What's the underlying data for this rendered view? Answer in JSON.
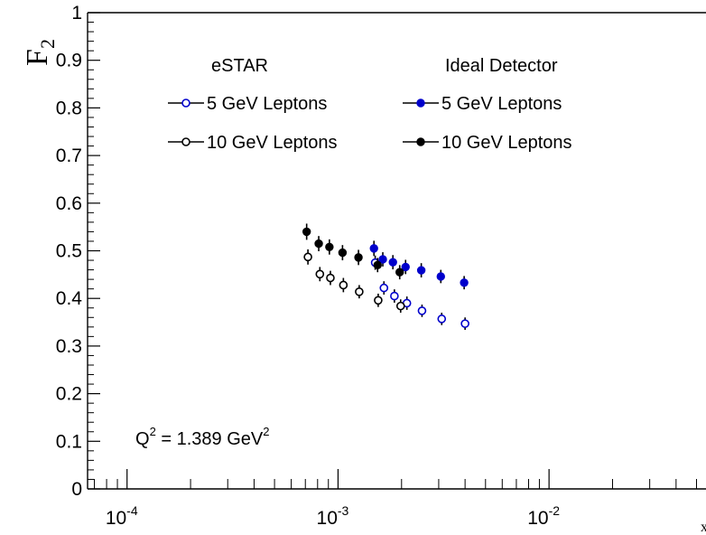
{
  "chart_data": {
    "type": "scatter",
    "title": "",
    "ylabel": {
      "base": "F",
      "sub": "2"
    },
    "xlabel": "x",
    "xscale": "log",
    "xlim": [
      6.5e-05,
      0.06
    ],
    "ylim": [
      0,
      1
    ],
    "y_ticks": [
      {
        "v": 0,
        "label": "0"
      },
      {
        "v": 0.1,
        "label": "0.1"
      },
      {
        "v": 0.2,
        "label": "0.2"
      },
      {
        "v": 0.3,
        "label": "0.3"
      },
      {
        "v": 0.4,
        "label": "0.4"
      },
      {
        "v": 0.5,
        "label": "0.5"
      },
      {
        "v": 0.6,
        "label": "0.6"
      },
      {
        "v": 0.7,
        "label": "0.7"
      },
      {
        "v": 0.8,
        "label": "0.8"
      },
      {
        "v": 0.9,
        "label": "0.9"
      },
      {
        "v": 1,
        "label": "1"
      }
    ],
    "x_ticks": [
      {
        "v": 0.0001,
        "base": "10",
        "exp": "-4"
      },
      {
        "v": 0.001,
        "base": "10",
        "exp": "-3"
      },
      {
        "v": 0.01,
        "base": "10",
        "exp": "-2"
      }
    ],
    "legend": {
      "col1_header": "eSTAR",
      "col2_header": "Ideal Detector"
    },
    "annotation": {
      "text": "Q",
      "sup1": "2",
      "mid": " = 1.389 GeV",
      "sup2": "2"
    },
    "series": [
      {
        "name": "5 GeV Leptons",
        "group": "eSTAR",
        "color": "#0000cc",
        "filled": false,
        "points": [
          {
            "x": 0.0015,
            "y": 0.475,
            "err": 0.015
          },
          {
            "x": 0.00165,
            "y": 0.422,
            "err": 0.014
          },
          {
            "x": 0.00185,
            "y": 0.405,
            "err": 0.014
          },
          {
            "x": 0.00212,
            "y": 0.39,
            "err": 0.014
          },
          {
            "x": 0.0025,
            "y": 0.374,
            "err": 0.013
          },
          {
            "x": 0.0031,
            "y": 0.357,
            "err": 0.013
          },
          {
            "x": 0.004,
            "y": 0.347,
            "err": 0.013
          }
        ]
      },
      {
        "name": "10 GeV Leptons",
        "group": "eSTAR",
        "color": "#000000",
        "filled": false,
        "points": [
          {
            "x": 0.00072,
            "y": 0.487,
            "err": 0.016
          },
          {
            "x": 0.00082,
            "y": 0.451,
            "err": 0.015
          },
          {
            "x": 0.00092,
            "y": 0.443,
            "err": 0.015
          },
          {
            "x": 0.00106,
            "y": 0.428,
            "err": 0.015
          },
          {
            "x": 0.00126,
            "y": 0.414,
            "err": 0.014
          },
          {
            "x": 0.00155,
            "y": 0.396,
            "err": 0.014
          },
          {
            "x": 0.00198,
            "y": 0.384,
            "err": 0.014
          }
        ]
      },
      {
        "name": "5 GeV Leptons",
        "group": "Ideal Detector",
        "color": "#0000cc",
        "filled": true,
        "points": [
          {
            "x": 0.00148,
            "y": 0.505,
            "err": 0.016
          },
          {
            "x": 0.00163,
            "y": 0.482,
            "err": 0.015
          },
          {
            "x": 0.00182,
            "y": 0.476,
            "err": 0.015
          },
          {
            "x": 0.00209,
            "y": 0.466,
            "err": 0.015
          },
          {
            "x": 0.00248,
            "y": 0.459,
            "err": 0.015
          },
          {
            "x": 0.00307,
            "y": 0.446,
            "err": 0.014
          },
          {
            "x": 0.00396,
            "y": 0.433,
            "err": 0.014
          }
        ]
      },
      {
        "name": "10 GeV Leptons",
        "group": "Ideal Detector",
        "color": "#000000",
        "filled": true,
        "points": [
          {
            "x": 0.00071,
            "y": 0.54,
            "err": 0.017
          },
          {
            "x": 0.00081,
            "y": 0.515,
            "err": 0.016
          },
          {
            "x": 0.00091,
            "y": 0.508,
            "err": 0.016
          },
          {
            "x": 0.00105,
            "y": 0.496,
            "err": 0.016
          },
          {
            "x": 0.00125,
            "y": 0.486,
            "err": 0.016
          },
          {
            "x": 0.00154,
            "y": 0.47,
            "err": 0.015
          },
          {
            "x": 0.00196,
            "y": 0.455,
            "err": 0.015
          }
        ]
      }
    ]
  }
}
